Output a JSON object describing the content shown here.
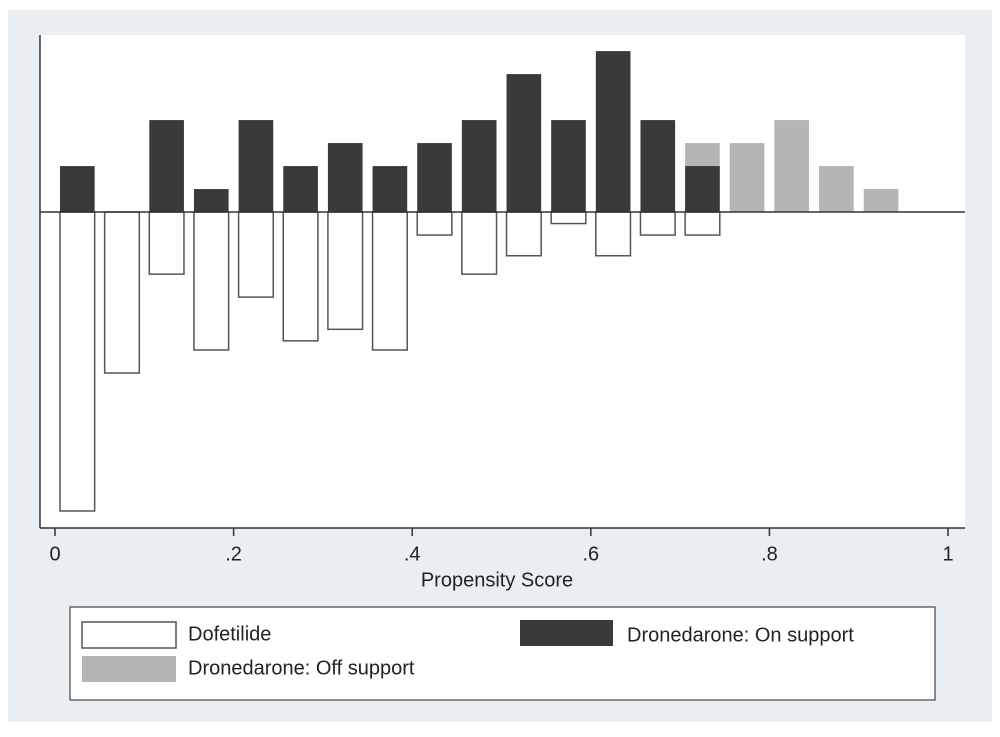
{
  "chart_data": {
    "type": "mirrored_histogram",
    "x_label": "Propensity Score",
    "bins": [
      0,
      0.05,
      0.1,
      0.15,
      0.2,
      0.25,
      0.3,
      0.35,
      0.4,
      0.45,
      0.5,
      0.55,
      0.6,
      0.65,
      0.7,
      0.75,
      0.8,
      0.85,
      0.9,
      0.95
    ],
    "series": [
      {
        "name": "Dofetilide",
        "color": "#ffffff",
        "values": [
          -13,
          -7,
          -2.7,
          -6,
          -3.7,
          -5.6,
          -5.1,
          -6,
          -1,
          -2.7,
          -1.9,
          -0.5,
          -1.9,
          -1,
          -1,
          null,
          null,
          null,
          null
        ]
      },
      {
        "name": "Dronedarone: Off support",
        "color": "#b5b5b5",
        "values": [
          null,
          null,
          null,
          null,
          null,
          null,
          null,
          null,
          null,
          null,
          null,
          null,
          null,
          null,
          3,
          3,
          4,
          2,
          1
        ]
      },
      {
        "name": "Dronedarone: On support",
        "color": "#3a3a3a",
        "values": [
          2,
          null,
          4,
          1,
          4,
          2,
          3,
          2,
          3,
          4,
          6,
          4,
          7,
          4,
          2,
          null,
          null,
          null,
          null
        ]
      }
    ],
    "xlim": [
      -0.0168,
      1.019
    ],
    "xticks": [
      0,
      {
        "value": 0.2,
        "label": ".2"
      },
      {
        "value": 0.4,
        "label": ".4"
      },
      {
        "value": 0.6,
        "label": ".6"
      },
      {
        "value": 0.8,
        "label": ".8"
      },
      1
    ],
    "ylim": [
      -13.74,
      7.7
    ]
  }
}
